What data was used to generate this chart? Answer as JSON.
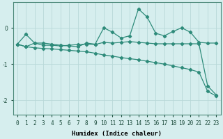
{
  "x": [
    0,
    1,
    2,
    3,
    4,
    5,
    6,
    7,
    8,
    9,
    10,
    11,
    12,
    13,
    14,
    15,
    16,
    17,
    18,
    19,
    20,
    21,
    22,
    23
  ],
  "line_volatile": [
    -0.45,
    -0.18,
    -0.42,
    -0.42,
    -0.45,
    -0.48,
    -0.5,
    -0.52,
    -0.42,
    -0.45,
    0.0,
    -0.12,
    -0.28,
    -0.22,
    0.52,
    0.3,
    -0.15,
    -0.22,
    -0.1,
    0.0,
    -0.12,
    -0.4,
    -0.42,
    -0.42
  ],
  "line_flat": [
    -0.45,
    -0.52,
    -0.42,
    -0.48,
    -0.48,
    -0.5,
    -0.48,
    -0.46,
    -0.45,
    -0.46,
    -0.4,
    -0.42,
    -0.4,
    -0.38,
    -0.4,
    -0.42,
    -0.44,
    -0.44,
    -0.44,
    -0.44,
    -0.44,
    -0.44,
    -1.6,
    -1.85
  ],
  "line_diagonal": [
    -0.45,
    -0.52,
    -0.55,
    -0.57,
    -0.58,
    -0.6,
    -0.62,
    -0.64,
    -0.66,
    -0.7,
    -0.75,
    -0.78,
    -0.82,
    -0.85,
    -0.88,
    -0.92,
    -0.96,
    -1.0,
    -1.05,
    -1.1,
    -1.15,
    -1.22,
    -1.75,
    -1.88
  ],
  "color": "#2e8b7a",
  "bg_color": "#d6eeee",
  "grid_color": "#b8d8d8",
  "xlabel": "Humidex (Indice chaleur)",
  "ylim": [
    -2.4,
    0.7
  ],
  "yticks": [
    0,
    -1,
    -2
  ],
  "figsize": [
    3.2,
    2.0
  ],
  "dpi": 100
}
